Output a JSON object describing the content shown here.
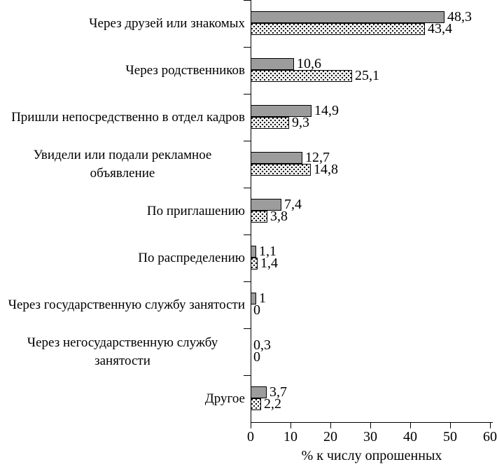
{
  "chart_data": {
    "type": "bar",
    "orientation": "horizontal",
    "title": "",
    "xlabel": "% к числу опрошенных",
    "ylabel": "",
    "xlim": [
      0,
      60
    ],
    "x_ticks": [
      "0",
      "10",
      "20",
      "30",
      "40",
      "50",
      "60"
    ],
    "grid": false,
    "legend": "none",
    "categories": [
      "Через друзей или знакомых",
      "Через родственников",
      "Пришли непосредственно в отдел кадров",
      "Увидели или подали рекламное объявление",
      "По приглашению",
      "По распределению",
      "Через государственную службу занятости",
      "Через негосударственную службу занятости",
      "Другое"
    ],
    "series": [
      {
        "name": "solid-gray",
        "pattern": "solid",
        "fill_color": "#9c9c9c",
        "values": [
          48.3,
          10.6,
          14.9,
          12.7,
          7.4,
          1.1,
          1,
          0.3,
          3.7
        ],
        "value_labels": [
          "48,3",
          "10,6",
          "14,9",
          "12,7",
          "7,4",
          "1,1",
          "1",
          "0,3",
          "3,7"
        ]
      },
      {
        "name": "dotted-white",
        "pattern": "dotted",
        "fill_color": "#ffffff",
        "dot_color": "#000000",
        "values": [
          43.4,
          25.1,
          9.3,
          14.8,
          3.8,
          1.4,
          0,
          0,
          2.2
        ],
        "value_labels": [
          "43,4",
          "25,1",
          "9,3",
          "14,8",
          "3,8",
          "1,4",
          "0",
          "0",
          "2,2"
        ]
      }
    ],
    "bar_border_color": "#000000",
    "axis_color": "#000000"
  }
}
